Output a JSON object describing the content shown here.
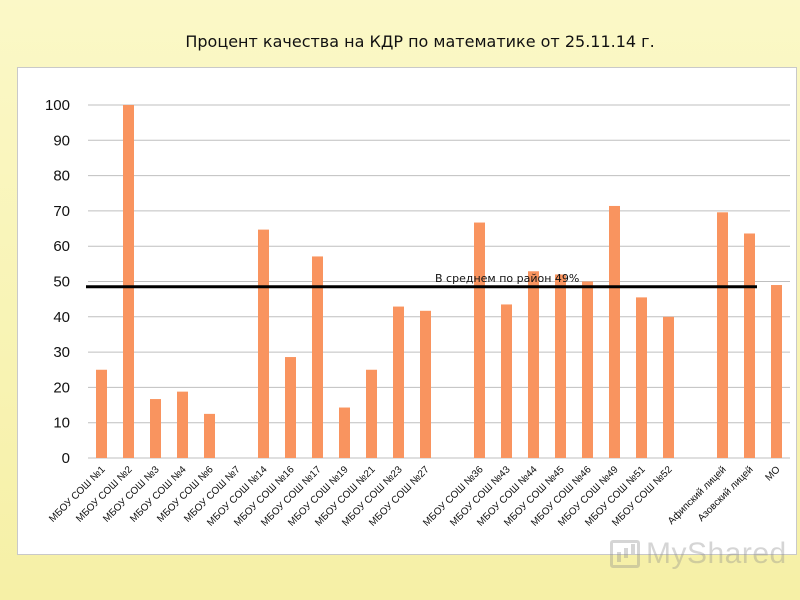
{
  "page": {
    "title": "Процент качества на КДР по математике от 25.11.14 г."
  },
  "watermark": {
    "text": "MyShared"
  },
  "colors": {
    "bar": "#f9945f",
    "average_line": "#000000",
    "grid": "#bfbfbf"
  },
  "chart_data": {
    "type": "bar",
    "title": "Процент качества на КДР по математике от 25.11.14 г.",
    "xlabel": "",
    "ylabel": "",
    "ylim": [
      0,
      100
    ],
    "yticks": [
      0,
      10,
      20,
      30,
      40,
      50,
      60,
      70,
      80,
      90,
      100
    ],
    "grid": true,
    "categories": [
      "МБОУ СОШ №1",
      "МБОУ СОШ №2",
      "МБОУ СОШ №3",
      "МБОУ СОШ №4",
      "МБОУ СОШ №6",
      "МБОУ СОШ №7",
      "МБОУ СОШ №14",
      "МБОУ СОШ №16",
      "МБОУ СОШ №17",
      "МБОУ СОШ №19",
      "МБОУ СОШ №21",
      "МБОУ СОШ №23",
      "МБОУ СОШ №27",
      "",
      "МБОУ СОШ №36",
      "МБОУ СОШ №43",
      "МБОУ СОШ №44",
      "МБОУ СОШ №45",
      "МБОУ СОШ №46",
      "МБОУ СОШ №49",
      "МБОУ СОШ №51",
      "МБОУ СОШ №52",
      "",
      "Афипский лицей",
      "Азовский лицей",
      "МО"
    ],
    "values": [
      25,
      100,
      16.7,
      18.8,
      12.5,
      null,
      64.7,
      28.6,
      57.1,
      14.3,
      25,
      42.9,
      41.7,
      null,
      66.7,
      43.5,
      52.9,
      52.0,
      50.0,
      71.4,
      45.5,
      40.0,
      null,
      69.6,
      63.6,
      49
    ],
    "average": {
      "value": 48.5,
      "label": "В среднем по район 49%"
    }
  }
}
